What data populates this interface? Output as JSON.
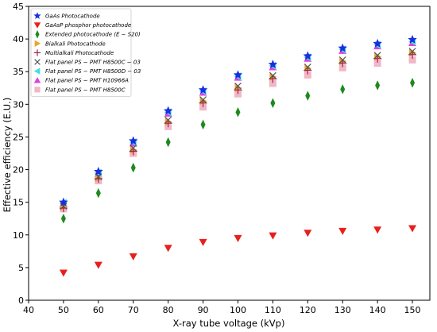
{
  "chart_data": {
    "type": "scatter",
    "xlabel": "X-ray tube voltage (kVp)",
    "ylabel": "Effective efficiency (E.U.)",
    "xlim": [
      40,
      155
    ],
    "ylim": [
      0,
      45
    ],
    "xticks": [
      40,
      50,
      60,
      70,
      80,
      90,
      100,
      110,
      120,
      130,
      140,
      150
    ],
    "yticks": [
      0,
      5,
      10,
      15,
      20,
      25,
      30,
      35,
      40,
      45
    ],
    "grid": false,
    "legend_position": "top-left",
    "x": [
      50,
      60,
      70,
      80,
      90,
      100,
      110,
      120,
      130,
      140,
      150
    ],
    "series": [
      {
        "name": "GaAs Photocathode",
        "marker": "star",
        "color": "#1a2ee0",
        "values": [
          15.0,
          19.7,
          24.4,
          29.0,
          32.2,
          34.5,
          36.1,
          37.4,
          38.6,
          39.3,
          39.9
        ]
      },
      {
        "name": "GaAsP phosphor photocathode",
        "marker": "triangle-down",
        "color": "#e8201c",
        "values": [
          4.2,
          5.4,
          6.7,
          8.0,
          8.9,
          9.5,
          9.9,
          10.3,
          10.6,
          10.8,
          11.0
        ]
      },
      {
        "name": "Extended photocathode (E − S20)",
        "marker": "thin-diamond",
        "color": "#1e8a1e",
        "values": [
          12.5,
          16.4,
          20.3,
          24.2,
          26.9,
          28.8,
          30.2,
          31.3,
          32.3,
          32.9,
          33.3
        ]
      },
      {
        "name": "Bialkali Photocathode",
        "marker": "triangle-right",
        "color": "#e8a530",
        "values": [
          14.3,
          18.7,
          23.0,
          27.3,
          30.5,
          32.5,
          34.2,
          35.5,
          36.6,
          37.3,
          37.9
        ]
      },
      {
        "name": "Multialkali Photocathode",
        "marker": "plus",
        "color": "#a02050",
        "values": [
          14.1,
          18.6,
          22.8,
          27.1,
          30.2,
          32.2,
          33.9,
          35.2,
          36.3,
          37.0,
          37.6
        ]
      },
      {
        "name": "Flat panel PS − PMT H8500C − 03",
        "marker": "x",
        "color": "#555555",
        "values": [
          14.4,
          18.9,
          23.3,
          27.6,
          30.7,
          32.8,
          34.4,
          35.7,
          36.8,
          37.5,
          38.1
        ]
      },
      {
        "name": "Flat panel PS − PMT H8500D − 03",
        "marker": "triangle-left",
        "color": "#3ee0e0",
        "values": [
          14.9,
          19.5,
          24.2,
          28.8,
          32.0,
          34.3,
          35.9,
          37.2,
          38.4,
          39.1,
          39.6
        ]
      },
      {
        "name": "Flat panel PS − PMT H10966A",
        "marker": "triangle-up",
        "color": "#e040e0",
        "values": [
          14.8,
          19.4,
          24.0,
          28.6,
          31.8,
          34.1,
          35.7,
          37.0,
          38.2,
          38.9,
          39.4
        ]
      },
      {
        "name": "Flat panel PS − PMT H8500C",
        "marker": "square",
        "color": "#f2b6c6",
        "values": [
          14.0,
          18.3,
          22.5,
          26.6,
          29.6,
          31.6,
          33.2,
          34.5,
          35.6,
          36.3,
          36.8
        ]
      }
    ]
  }
}
